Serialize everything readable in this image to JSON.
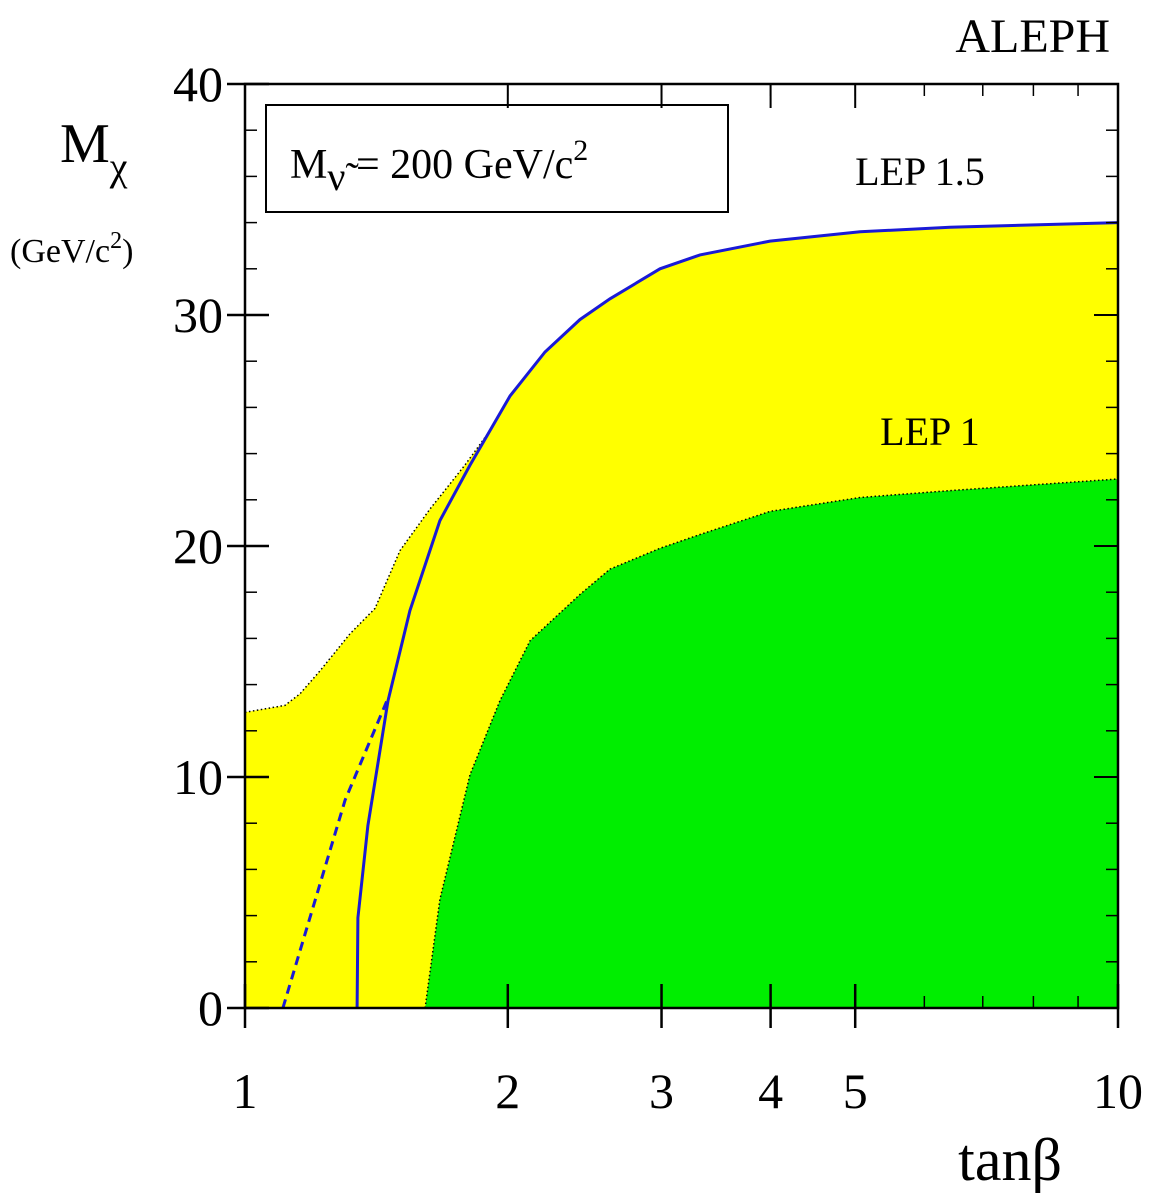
{
  "chart_data": {
    "type": "area",
    "title": "ALEPH",
    "x_label": "tanβ",
    "y_label": {
      "main": "M",
      "sub": "χ"
    },
    "y_unit": {
      "main": "(GeV/c",
      "sup": "2",
      "end": ")"
    },
    "legend_box": {
      "main": "M",
      "sub": "ν̃",
      "rest": " = 200 GeV/c",
      "sup": "2"
    },
    "xscale": "log",
    "xlim": [
      1,
      10
    ],
    "xticks": [
      1,
      2,
      3,
      4,
      5,
      10
    ],
    "ylim": [
      0,
      40
    ],
    "yticks": [
      0,
      10,
      20,
      30,
      40
    ],
    "series": [
      {
        "name": "LEP 1.5",
        "kind": "area",
        "color": "#ffff00",
        "x": [
          1,
          1.111,
          1.156,
          1.219,
          1.319,
          1.409,
          1.505,
          1.629,
          1.786,
          1.909,
          2.012,
          2.206,
          2.419,
          2.619,
          2.988,
          3.32,
          3.994,
          5.065,
          6.421,
          10
        ],
        "values": [
          12.8,
          13.1,
          13.6,
          14.6,
          16.2,
          17.3,
          19.8,
          21.6,
          23.5,
          25.0,
          26.5,
          28.4,
          29.8,
          30.7,
          32.0,
          32.6,
          33.2,
          33.6,
          33.8,
          34.0
        ]
      },
      {
        "name": "LEP 1",
        "kind": "area",
        "color": "#00ee00",
        "x": [
          1.608,
          1.672,
          1.81,
          1.959,
          2.121,
          2.419,
          2.619,
          2.988,
          3.32,
          3.994,
          5.065,
          6.421,
          10
        ],
        "values": [
          0,
          4.7,
          10.1,
          13.3,
          15.9,
          17.9,
          19.0,
          19.9,
          20.5,
          21.5,
          22.1,
          22.4,
          22.9
        ]
      },
      {
        "kind": "line",
        "style": "solid",
        "color": "#1a1ad6",
        "x": [
          1.344,
          1.347,
          1.383,
          1.458,
          1.545,
          1.672,
          1.81,
          2.012,
          2.206,
          2.419,
          2.619,
          2.988,
          3.32,
          3.994,
          5.065,
          6.421,
          10
        ],
        "values": [
          0,
          3.9,
          7.9,
          13.3,
          17.2,
          21.1,
          23.5,
          26.5,
          28.4,
          29.8,
          30.7,
          32.0,
          32.6,
          33.2,
          33.6,
          33.8,
          34.0
        ]
      },
      {
        "kind": "line",
        "style": "dashed",
        "color": "#1a1ad6",
        "x": [
          1.105,
          1.302,
          1.454
        ],
        "values": [
          0,
          9.0,
          13.3
        ]
      }
    ]
  }
}
